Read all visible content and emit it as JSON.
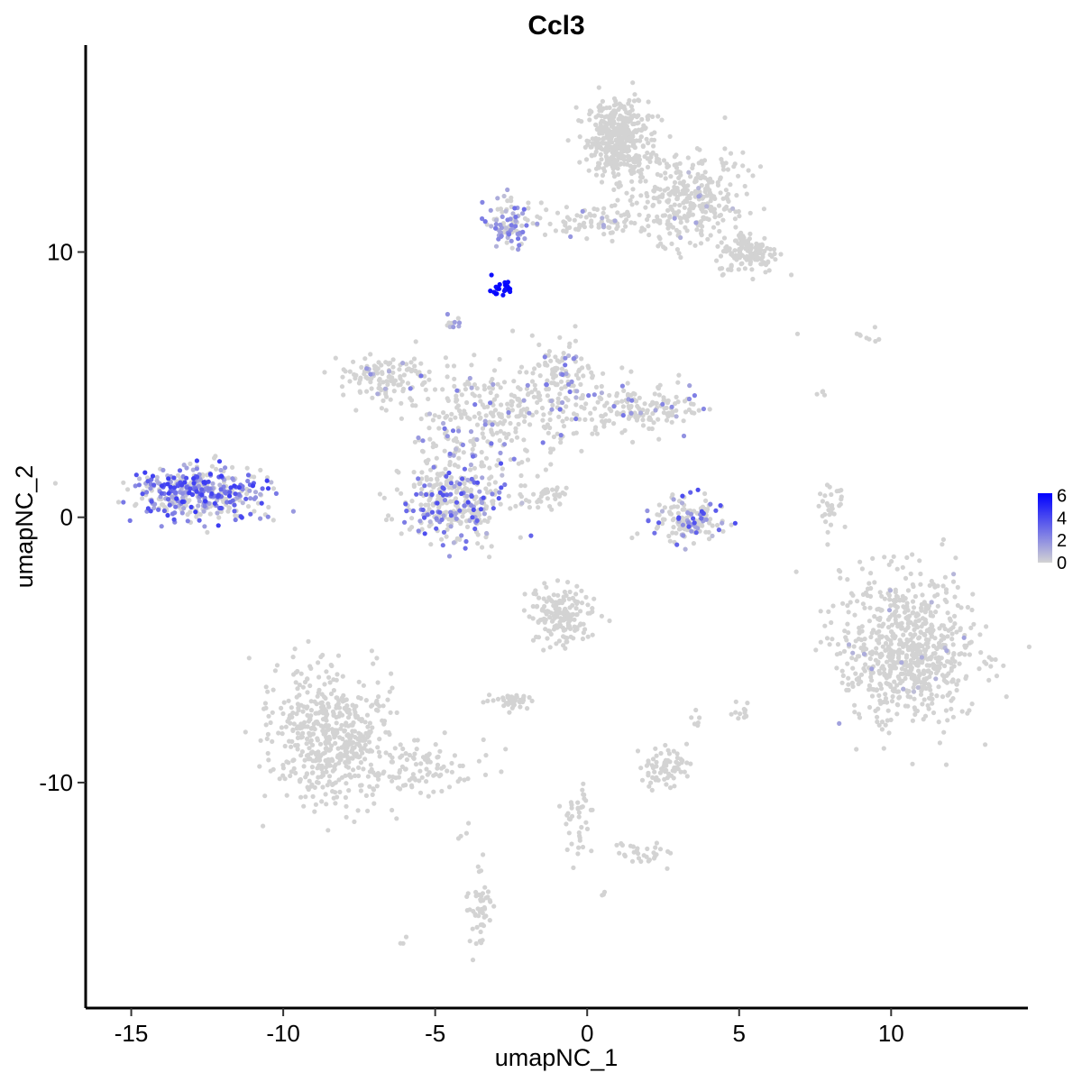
{
  "chart_data": {
    "type": "scatter",
    "title": "Ccl3",
    "xlabel": "umapNC_1",
    "ylabel": "umapNC_2",
    "xlim": [
      -16.5,
      14.5
    ],
    "ylim": [
      -18.5,
      17.8
    ],
    "xticks": [
      -15,
      -10,
      -5,
      0,
      5,
      10
    ],
    "yticks": [
      -10,
      0,
      10
    ],
    "xtick_labels": [
      "-15",
      "-10",
      "-5",
      "0",
      "5",
      "10"
    ],
    "ytick_labels": [
      "-10",
      "0",
      "10"
    ],
    "grid": false,
    "color_scale": {
      "low": "#d3d3d3",
      "high": "#0000ff",
      "min": 0,
      "max": 6.2,
      "ticks": [
        0,
        2,
        4,
        6
      ],
      "tick_labels": [
        "0",
        "2",
        "4",
        "6"
      ],
      "legend_position": "right"
    },
    "point_color_default": "#d3d3d3",
    "clusters": [
      {
        "cx": 1.0,
        "cy": 14.3,
        "sx": 0.5,
        "sy": 0.7,
        "n": 420,
        "expr_frac": 0.0,
        "expr_max": 0
      },
      {
        "cx": 3.2,
        "cy": 12.0,
        "sx": 1.0,
        "sy": 0.9,
        "n": 320,
        "expr_frac": 0.03,
        "expr_max": 1.5
      },
      {
        "cx": 5.3,
        "cy": 10.0,
        "sx": 0.5,
        "sy": 0.4,
        "n": 140,
        "expr_frac": 0.0,
        "expr_max": 0
      },
      {
        "cx": 0.6,
        "cy": 11.2,
        "sx": 1.5,
        "sy": 0.3,
        "n": 90,
        "expr_frac": 0.06,
        "expr_max": 2
      },
      {
        "cx": -2.6,
        "cy": 11.1,
        "sx": 0.35,
        "sy": 0.5,
        "n": 90,
        "expr_frac": 0.6,
        "expr_max": 3
      },
      {
        "cx": -2.85,
        "cy": 8.6,
        "sx": 0.15,
        "sy": 0.15,
        "n": 22,
        "expr_frac": 1.0,
        "expr_max": 6.2,
        "expr_min": 5.6
      },
      {
        "cx": -4.5,
        "cy": 7.3,
        "sx": 0.15,
        "sy": 0.2,
        "n": 10,
        "expr_frac": 0.3,
        "expr_max": 3
      },
      {
        "cx": -6.6,
        "cy": 5.3,
        "sx": 0.8,
        "sy": 0.4,
        "n": 120,
        "expr_frac": 0.05,
        "expr_max": 2.5
      },
      {
        "cx": -3.0,
        "cy": 3.8,
        "sx": 1.5,
        "sy": 0.9,
        "n": 300,
        "expr_frac": 0.12,
        "expr_max": 3
      },
      {
        "cx": -0.8,
        "cy": 5.3,
        "sx": 0.5,
        "sy": 0.7,
        "n": 110,
        "expr_frac": 0.15,
        "expr_max": 3
      },
      {
        "cx": 1.8,
        "cy": 4.2,
        "sx": 0.9,
        "sy": 0.5,
        "n": 150,
        "expr_frac": 0.12,
        "expr_max": 3
      },
      {
        "cx": -4.4,
        "cy": 0.6,
        "sx": 0.8,
        "sy": 0.75,
        "n": 340,
        "expr_frac": 0.3,
        "expr_max": 4
      },
      {
        "cx": -1.3,
        "cy": 0.8,
        "sx": 0.6,
        "sy": 0.25,
        "n": 40,
        "expr_frac": 0.0,
        "expr_max": 0
      },
      {
        "cx": -12.7,
        "cy": 0.9,
        "sx": 1.0,
        "sy": 0.5,
        "n": 420,
        "expr_frac": 0.55,
        "expr_max": 4.5
      },
      {
        "cx": 3.3,
        "cy": -0.1,
        "sx": 0.55,
        "sy": 0.45,
        "n": 150,
        "expr_frac": 0.2,
        "expr_max": 4
      },
      {
        "cx": 8.0,
        "cy": 0.3,
        "sx": 0.2,
        "sy": 0.5,
        "n": 30,
        "expr_frac": 0.0,
        "expr_max": 0
      },
      {
        "cx": 10.6,
        "cy": -5.0,
        "sx": 1.1,
        "sy": 1.4,
        "n": 720,
        "expr_frac": 0.02,
        "expr_max": 1.5
      },
      {
        "cx": -0.8,
        "cy": -3.7,
        "sx": 0.55,
        "sy": 0.55,
        "n": 160,
        "expr_frac": 0.0,
        "expr_max": 0
      },
      {
        "cx": -8.4,
        "cy": -8.3,
        "sx": 1.0,
        "sy": 1.2,
        "n": 560,
        "expr_frac": 0.0,
        "expr_max": 0
      },
      {
        "cx": -5.3,
        "cy": -9.5,
        "sx": 1.0,
        "sy": 0.5,
        "n": 80,
        "expr_frac": 0.0,
        "expr_max": 0
      },
      {
        "cx": 2.5,
        "cy": -9.4,
        "sx": 0.4,
        "sy": 0.35,
        "n": 70,
        "expr_frac": 0.0,
        "expr_max": 0
      },
      {
        "cx": -2.6,
        "cy": -6.9,
        "sx": 0.4,
        "sy": 0.2,
        "n": 40,
        "expr_frac": 0.0,
        "expr_max": 0
      },
      {
        "cx": -0.3,
        "cy": -11.5,
        "sx": 0.25,
        "sy": 0.8,
        "n": 40,
        "expr_frac": 0.0,
        "expr_max": 0
      },
      {
        "cx": 1.8,
        "cy": -12.6,
        "sx": 0.5,
        "sy": 0.25,
        "n": 30,
        "expr_frac": 0.0,
        "expr_max": 0
      },
      {
        "cx": -3.5,
        "cy": -14.7,
        "sx": 0.2,
        "sy": 0.8,
        "n": 50,
        "expr_frac": 0.0,
        "expr_max": 0
      },
      {
        "cx": 5.0,
        "cy": -7.3,
        "sx": 0.15,
        "sy": 0.2,
        "n": 12,
        "expr_frac": 0.0,
        "expr_max": 0
      },
      {
        "cx": 3.6,
        "cy": -7.6,
        "sx": 0.1,
        "sy": 0.15,
        "n": 6,
        "expr_frac": 0.0,
        "expr_max": 0
      },
      {
        "cx": 9.3,
        "cy": 6.8,
        "sx": 0.3,
        "sy": 0.15,
        "n": 8,
        "expr_frac": 0.0,
        "expr_max": 0
      },
      {
        "cx": 7.7,
        "cy": 4.8,
        "sx": 0.1,
        "sy": 0.2,
        "n": 4,
        "expr_frac": 0.0,
        "expr_max": 0
      },
      {
        "cx": 6.9,
        "cy": 6.9,
        "sx": 0.05,
        "sy": 0.05,
        "n": 1,
        "expr_frac": 0.0,
        "expr_max": 0
      },
      {
        "cx": -6.0,
        "cy": -16.1,
        "sx": 0.1,
        "sy": 0.1,
        "n": 3,
        "expr_frac": 0.0,
        "expr_max": 0
      },
      {
        "cx": 0.6,
        "cy": -14.2,
        "sx": 0.1,
        "sy": 0.1,
        "n": 3,
        "expr_frac": 0.0,
        "expr_max": 0
      },
      {
        "cx": -4.0,
        "cy": -11.8,
        "sx": 0.1,
        "sy": 0.15,
        "n": 4,
        "expr_frac": 0.0,
        "expr_max": 0
      }
    ]
  }
}
